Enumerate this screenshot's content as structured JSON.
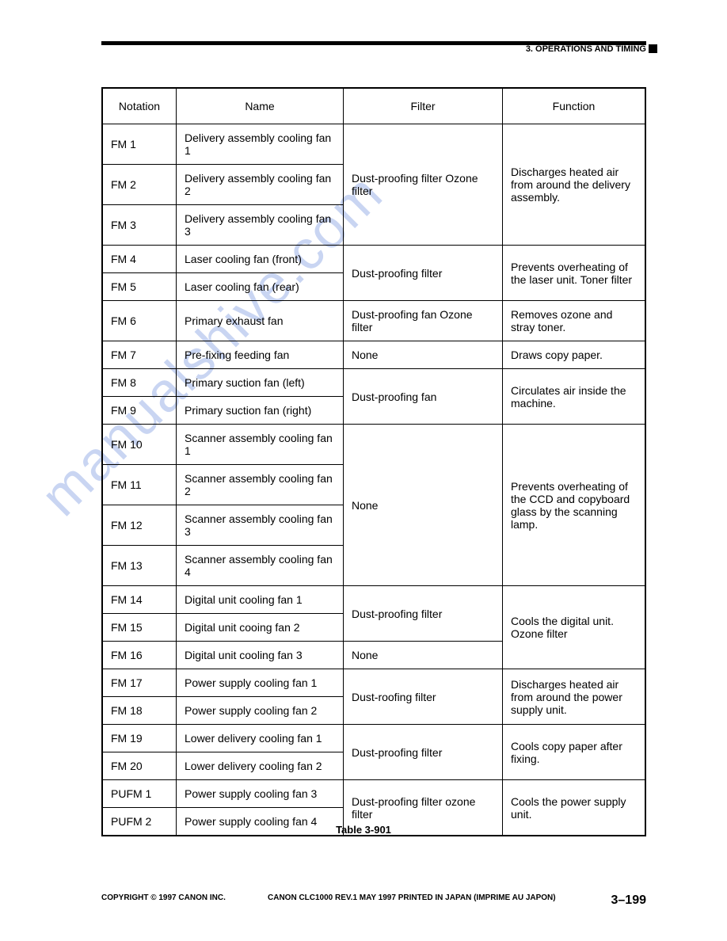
{
  "header": "3. OPERATIONS AND TIMING",
  "columns": [
    "Notation",
    "Name",
    "Filter",
    "Function"
  ],
  "rows": [
    {
      "n": "FM 1",
      "name": "Delivery assembly cooling fan 1",
      "filter": "Dust-proofing filter Ozone filter",
      "fspan": 3,
      "func": "Discharges heated air from around the delivery assembly.",
      "funcspan": 3
    },
    {
      "n": "FM 2",
      "name": "Delivery assembly cooling fan 2"
    },
    {
      "n": "FM 3",
      "name": "Delivery assembly cooling fan 3"
    },
    {
      "n": "FM 4",
      "name": "Laser cooling fan (front)",
      "filter": "Dust-proofing filter",
      "fspan": 2,
      "func": "Prevents overheating of the laser unit.\nToner filter",
      "funcspan": 2
    },
    {
      "n": "FM 5",
      "name": "Laser cooling fan (rear)"
    },
    {
      "n": "FM 6",
      "name": "Primary exhaust fan",
      "filter": "Dust-proofing fan Ozone filter",
      "fspan": 1,
      "func": "Removes ozone and stray toner.",
      "funcspan": 1
    },
    {
      "n": "FM 7",
      "name": "Pre-fixing feeding fan",
      "filter": "None",
      "fspan": 1,
      "func": "Draws copy paper.",
      "funcspan": 1
    },
    {
      "n": "FM 8",
      "name": "Primary suction fan (left)",
      "filter": "Dust-proofing fan",
      "fspan": 2,
      "func": "Circulates air inside the machine.",
      "funcspan": 2
    },
    {
      "n": "FM 9",
      "name": "Primary suction fan (right)"
    },
    {
      "n": "FM 10",
      "name": "Scanner assembly cooling fan 1",
      "filter": "None",
      "fspan": 4,
      "func": "Prevents overheating of the CCD and copyboard glass by the scanning lamp.",
      "funcspan": 4
    },
    {
      "n": "FM 11",
      "name": "Scanner assembly cooling fan 2"
    },
    {
      "n": "FM 12",
      "name": "Scanner assembly cooling fan 3"
    },
    {
      "n": "FM 13",
      "name": "Scanner assembly cooling fan 4"
    },
    {
      "n": "FM 14",
      "name": "Digital unit cooling fan 1",
      "filter": "Dust-proofing filter",
      "fspan": 2,
      "func": "Cools the digital unit. Ozone filter",
      "funcspan": 3
    },
    {
      "n": "FM 15",
      "name": "Digital unit cooing fan 2"
    },
    {
      "n": "FM 16",
      "name": "Digital unit cooling fan 3",
      "filter": "None",
      "fspan": 1
    },
    {
      "n": "FM 17",
      "name": "Power supply cooling fan 1",
      "filter": "Dust-roofing filter",
      "fspan": 2,
      "func": "Discharges heated air from around the power supply unit.",
      "funcspan": 2
    },
    {
      "n": "FM 18",
      "name": "Power supply cooling fan 2"
    },
    {
      "n": "FM 19",
      "name": "Lower delivery cooling fan 1",
      "filter": "Dust-proofing filter",
      "fspan": 2,
      "func": "Cools copy paper after fixing.",
      "funcspan": 2
    },
    {
      "n": "FM 20",
      "name": "Lower delivery cooling fan 2"
    },
    {
      "n": "PUFM 1",
      "name": "Power supply cooling fan 3",
      "filter": "Dust-proofing filter ozone filter",
      "fspan": 2,
      "func": "Cools the power supply unit.",
      "funcspan": 2
    },
    {
      "n": "PUFM 2",
      "name": "Power supply cooling fan 4"
    }
  ],
  "caption": "Table 3-901",
  "footer": {
    "left": "COPYRIGHT © 1997 CANON INC.",
    "mid": "CANON CLC1000 REV.1 MAY 1997 PRINTED IN JAPAN (IMPRIME AU JAPON)",
    "right": "3–199"
  },
  "watermark": "manualshive.com"
}
